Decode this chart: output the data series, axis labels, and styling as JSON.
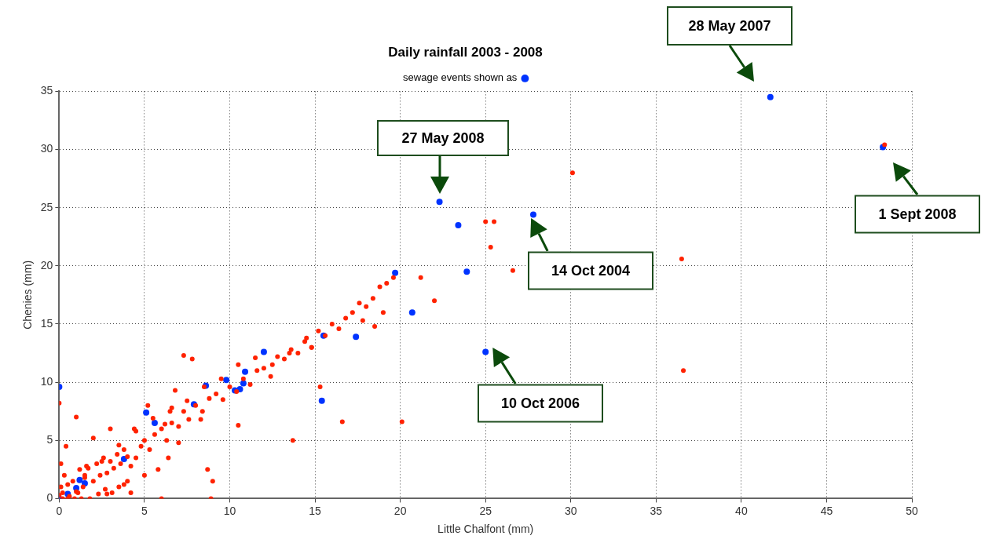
{
  "chart_data": {
    "type": "scatter",
    "title": "Daily rainfall 2003 - 2008",
    "xlabel": "Little Chalfont (mm)",
    "ylabel": "Chenies (mm)",
    "xlim": [
      0,
      50
    ],
    "ylim": [
      0,
      35
    ],
    "xticks": [
      0,
      5,
      10,
      15,
      20,
      25,
      30,
      35,
      40,
      45,
      50
    ],
    "yticks": [
      0,
      5,
      10,
      15,
      20,
      25,
      30,
      35
    ],
    "grid": true,
    "legend": "top",
    "marker": "circle",
    "series": [
      {
        "color": "#ff2200",
        "x": [
          0,
          0.1,
          0.2,
          0.3,
          0.5,
          0.6,
          0.8,
          1,
          1.2,
          1.4,
          1.5,
          1.7,
          2,
          2.2,
          2.4,
          2.6,
          2.8,
          3,
          3.2,
          3.4,
          3.6,
          3.8,
          4,
          0.2,
          0.5,
          0.9,
          1.3,
          1.8,
          2.3,
          2.7,
          3.1,
          3.5,
          4.2,
          4.5,
          4.8,
          5,
          5.3,
          5.6,
          6,
          6.3,
          6.6,
          7,
          7.3,
          7.6,
          8,
          8.4,
          8.8,
          9.2,
          9.6,
          10,
          10.4,
          10.8,
          11.2,
          11.6,
          12,
          12.4,
          12.8,
          13.2,
          13.6,
          14,
          14.4,
          14.8,
          15.2,
          15.6,
          16,
          16.4,
          16.8,
          17.2,
          17.6,
          18,
          18.4,
          18.8,
          19.2,
          19.6,
          1.5,
          2.5,
          3.5,
          4.5,
          5.5,
          6.5,
          7.5,
          8.5,
          9.5,
          10.5,
          11.5,
          12.5,
          13.5,
          14.5,
          0,
          0.1,
          1,
          1.6,
          2.8,
          4,
          4.2,
          5,
          5.8,
          6,
          6.4,
          6.6,
          7,
          7.3,
          7.8,
          8.3,
          8.7,
          8.9,
          9,
          10.5,
          13.7,
          14.8,
          15.3,
          16.6,
          17.8,
          18.5,
          19,
          20.1,
          21.2,
          25,
          25.5,
          25.3,
          26.6,
          30.1,
          36.5,
          36.6,
          48.4,
          22,
          6.2,
          4.4,
          3,
          1.1,
          0.4,
          2,
          5.2,
          6.8,
          3.8
        ],
        "values": [
          0.3,
          1,
          0.5,
          2,
          1.2,
          0.2,
          1.5,
          0.6,
          2.5,
          1,
          1.8,
          2.6,
          1.5,
          3,
          2,
          3.5,
          2.2,
          3.2,
          2.6,
          3.8,
          3,
          4.2,
          3.6,
          0,
          0,
          0,
          0,
          0,
          0.4,
          0.8,
          0.5,
          1,
          2.8,
          3.5,
          4.5,
          5,
          4.2,
          5.5,
          6,
          5,
          6.5,
          6.2,
          7.5,
          6.8,
          8,
          7.5,
          8.6,
          9,
          8.5,
          9.6,
          9.2,
          10.3,
          9.8,
          11,
          11.2,
          10.5,
          12.2,
          12,
          12.8,
          12.5,
          13.5,
          13,
          14.4,
          14,
          15,
          14.6,
          15.5,
          16,
          16.8,
          16.5,
          17.2,
          18.2,
          18.5,
          19,
          2,
          3.2,
          4.6,
          5.8,
          6.9,
          7.5,
          8.4,
          9.6,
          10.3,
          11.5,
          12.1,
          11.5,
          12.5,
          13.8,
          8.2,
          3,
          7,
          2.8,
          0.4,
          1.5,
          0.5,
          2,
          2.5,
          0,
          3.5,
          7.8,
          4.8,
          12.3,
          12,
          6.8,
          2.5,
          0,
          1.5,
          6.3,
          5,
          13,
          9.6,
          6.6,
          15.3,
          14.8,
          16,
          6.6,
          19,
          23.8,
          23.8,
          21.6,
          19.6,
          28,
          20.6,
          11,
          30.4,
          17,
          6.4,
          6,
          6,
          0.5,
          4.5,
          5.2,
          8,
          9.3,
          1.2
        ]
      },
      {
        "name": "sewage events shown as",
        "color": "#0033ff",
        "x": [
          0,
          0,
          0.5,
          1,
          1.2,
          1.5,
          3.8,
          5.1,
          5.6,
          7.9,
          8.6,
          9.8,
          10.3,
          10.6,
          10.8,
          10.9,
          12,
          15.4,
          15.5,
          17.4,
          19.7,
          20.7,
          22.3,
          23.4,
          23.9,
          25,
          27.8,
          41.7,
          48.3
        ],
        "values": [
          0,
          9.6,
          0.4,
          0.9,
          1.6,
          1.3,
          3.4,
          7.4,
          6.5,
          8.1,
          9.7,
          10.2,
          9.3,
          9.4,
          9.9,
          10.9,
          12.6,
          8.4,
          14,
          13.9,
          19.4,
          16,
          25.5,
          23.5,
          19.5,
          12.6,
          24.4,
          34.5,
          30.2
        ]
      }
    ],
    "annotations": [
      "28 May 2007",
      "27 May 2008",
      "1 Sept 2008",
      "14 Oct 2004",
      "10 Oct 2006"
    ]
  }
}
